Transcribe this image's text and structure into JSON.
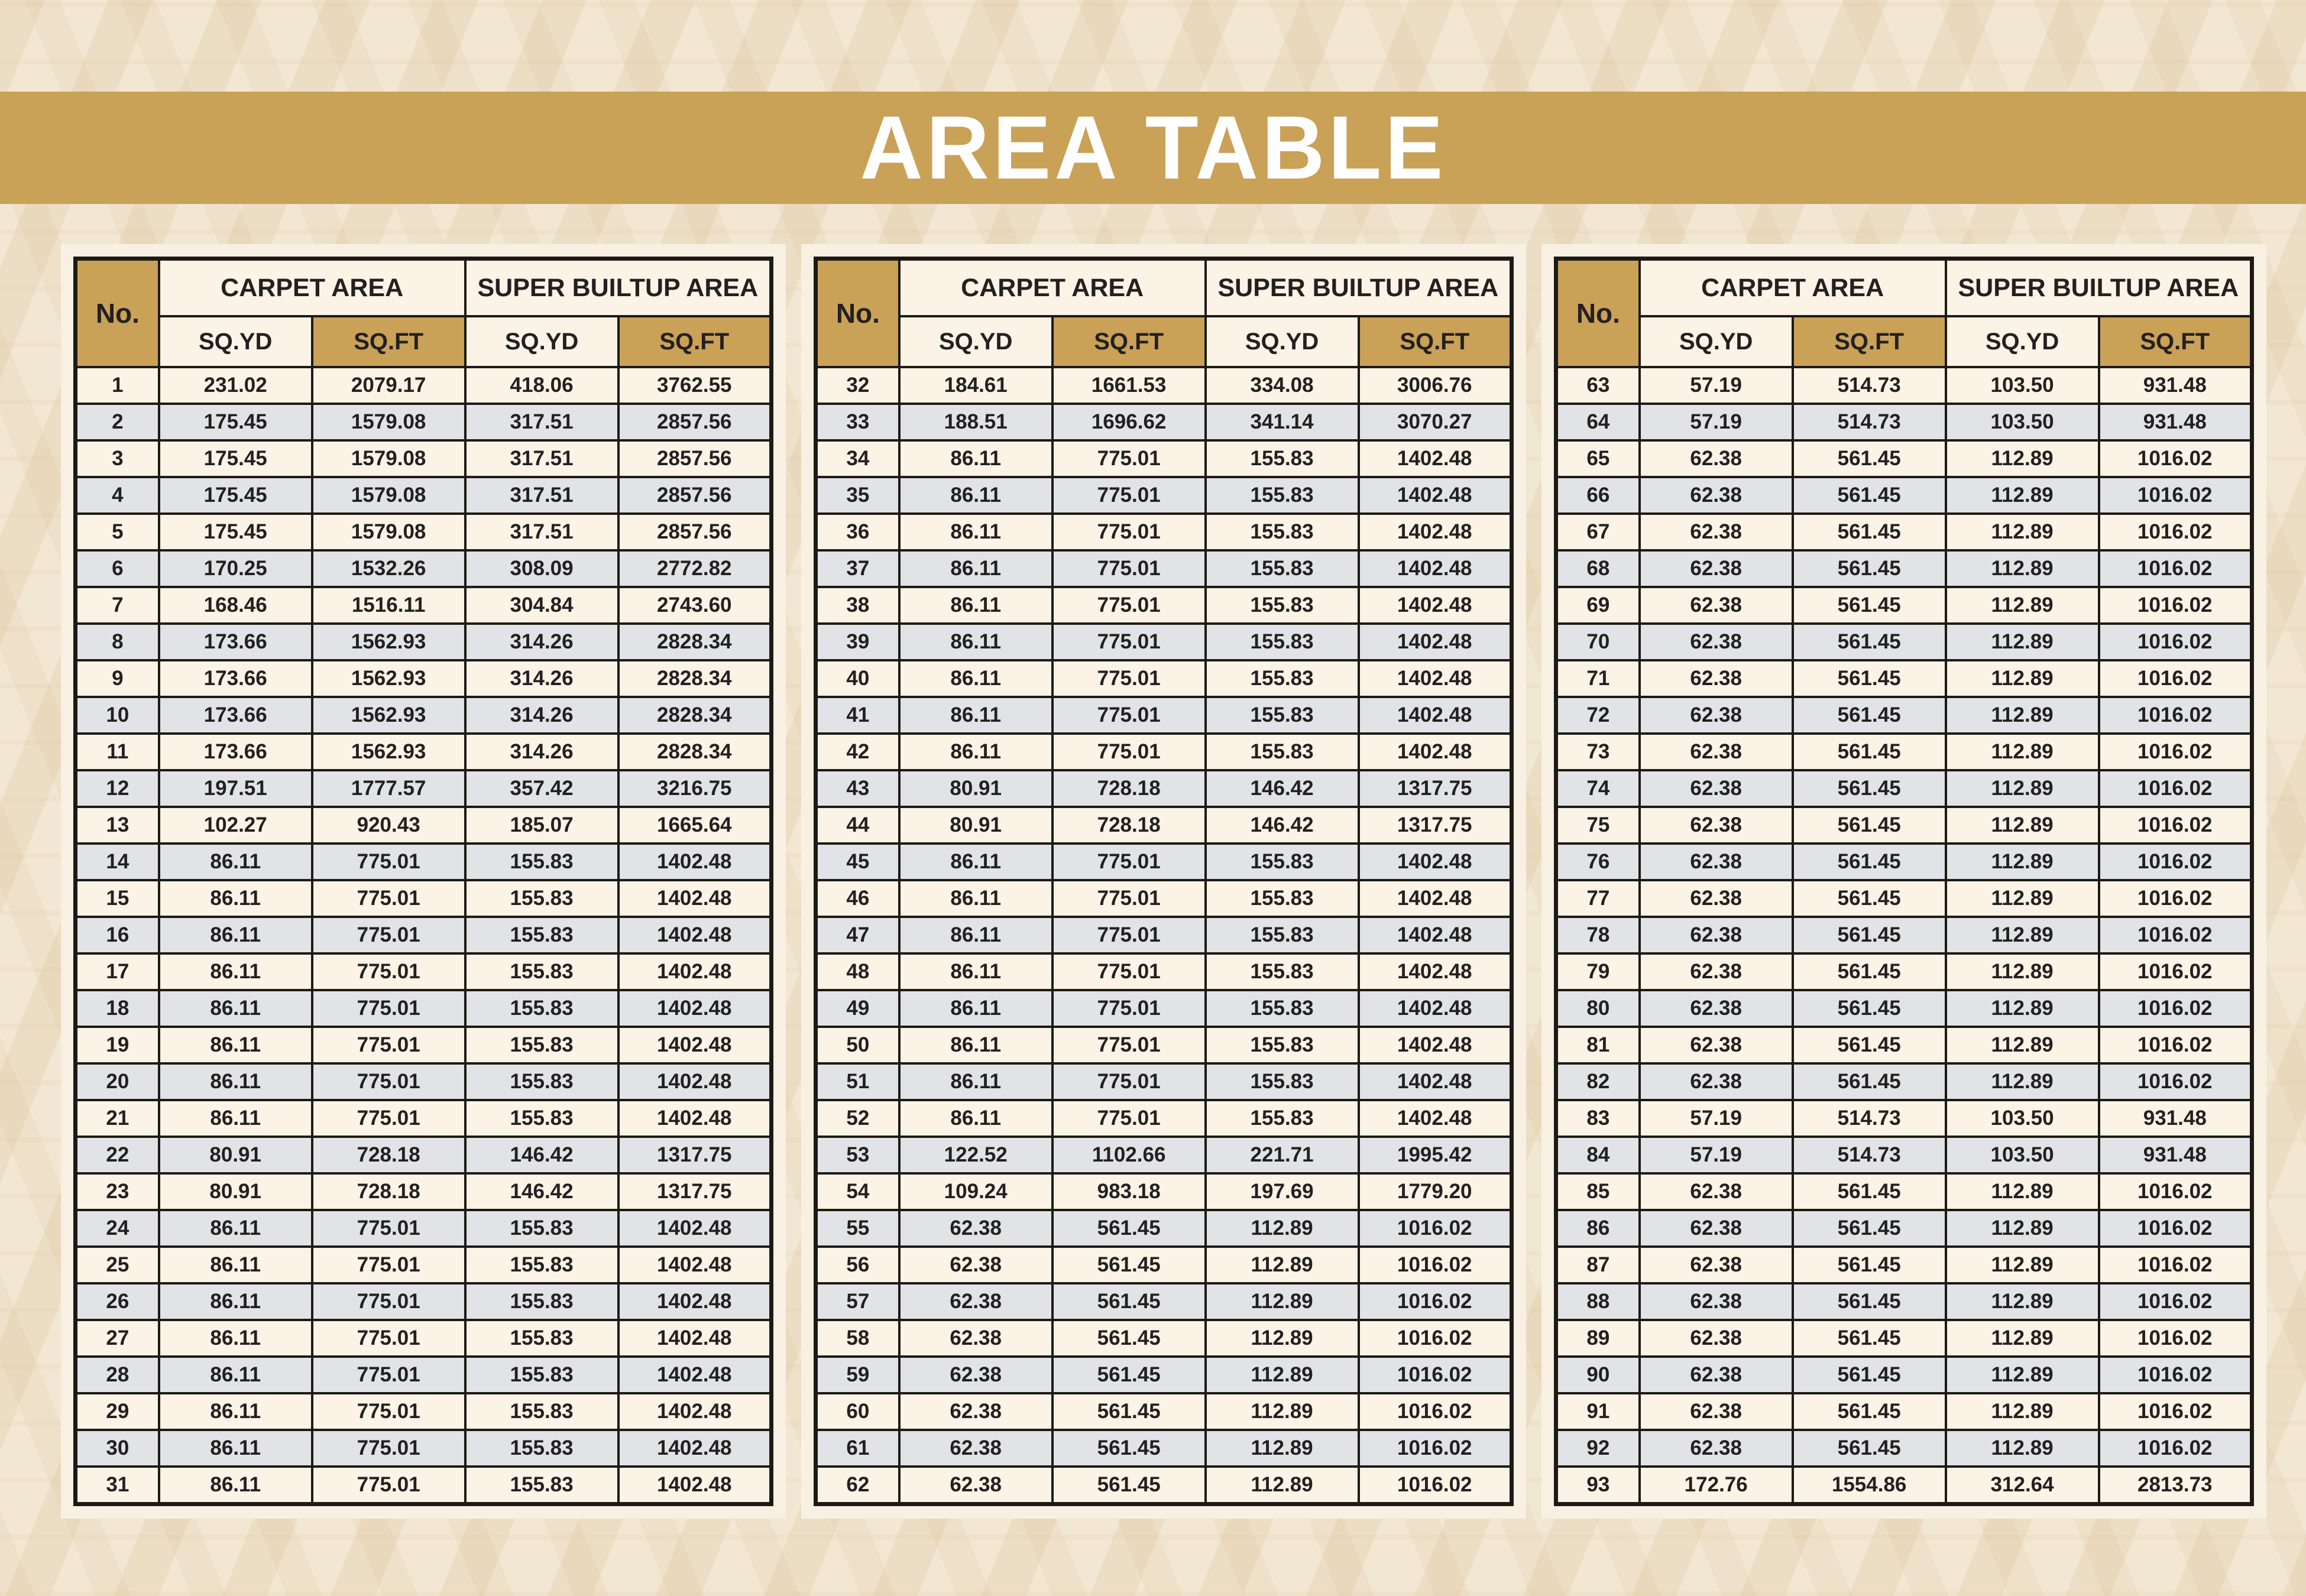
{
  "title": "AREA TABLE",
  "colors": {
    "band_gold": "#c9a157",
    "header_gold": "#c9a157",
    "row_cream": "#faf3e6",
    "row_gray": "#e2e3e6",
    "border_dark": "#1d1a16",
    "page_background": "#f2e7d3",
    "panel_background": "#f8f1e3",
    "title_text": "#ffffff",
    "cell_text": "#232020"
  },
  "headers": {
    "no": "No.",
    "carpet": "CARPET AREA",
    "super_builtup": "SUPER BUILTUP AREA",
    "sqyd": "SQ.YD",
    "sqft": "SQ.FT"
  },
  "tables": [
    {
      "rows": [
        [
          "1",
          "231.02",
          "2079.17",
          "418.06",
          "3762.55"
        ],
        [
          "2",
          "175.45",
          "1579.08",
          "317.51",
          "2857.56"
        ],
        [
          "3",
          "175.45",
          "1579.08",
          "317.51",
          "2857.56"
        ],
        [
          "4",
          "175.45",
          "1579.08",
          "317.51",
          "2857.56"
        ],
        [
          "5",
          "175.45",
          "1579.08",
          "317.51",
          "2857.56"
        ],
        [
          "6",
          "170.25",
          "1532.26",
          "308.09",
          "2772.82"
        ],
        [
          "7",
          "168.46",
          "1516.11",
          "304.84",
          "2743.60"
        ],
        [
          "8",
          "173.66",
          "1562.93",
          "314.26",
          "2828.34"
        ],
        [
          "9",
          "173.66",
          "1562.93",
          "314.26",
          "2828.34"
        ],
        [
          "10",
          "173.66",
          "1562.93",
          "314.26",
          "2828.34"
        ],
        [
          "11",
          "173.66",
          "1562.93",
          "314.26",
          "2828.34"
        ],
        [
          "12",
          "197.51",
          "1777.57",
          "357.42",
          "3216.75"
        ],
        [
          "13",
          "102.27",
          "920.43",
          "185.07",
          "1665.64"
        ],
        [
          "14",
          "86.11",
          "775.01",
          "155.83",
          "1402.48"
        ],
        [
          "15",
          "86.11",
          "775.01",
          "155.83",
          "1402.48"
        ],
        [
          "16",
          "86.11",
          "775.01",
          "155.83",
          "1402.48"
        ],
        [
          "17",
          "86.11",
          "775.01",
          "155.83",
          "1402.48"
        ],
        [
          "18",
          "86.11",
          "775.01",
          "155.83",
          "1402.48"
        ],
        [
          "19",
          "86.11",
          "775.01",
          "155.83",
          "1402.48"
        ],
        [
          "20",
          "86.11",
          "775.01",
          "155.83",
          "1402.48"
        ],
        [
          "21",
          "86.11",
          "775.01",
          "155.83",
          "1402.48"
        ],
        [
          "22",
          "80.91",
          "728.18",
          "146.42",
          "1317.75"
        ],
        [
          "23",
          "80.91",
          "728.18",
          "146.42",
          "1317.75"
        ],
        [
          "24",
          "86.11",
          "775.01",
          "155.83",
          "1402.48"
        ],
        [
          "25",
          "86.11",
          "775.01",
          "155.83",
          "1402.48"
        ],
        [
          "26",
          "86.11",
          "775.01",
          "155.83",
          "1402.48"
        ],
        [
          "27",
          "86.11",
          "775.01",
          "155.83",
          "1402.48"
        ],
        [
          "28",
          "86.11",
          "775.01",
          "155.83",
          "1402.48"
        ],
        [
          "29",
          "86.11",
          "775.01",
          "155.83",
          "1402.48"
        ],
        [
          "30",
          "86.11",
          "775.01",
          "155.83",
          "1402.48"
        ],
        [
          "31",
          "86.11",
          "775.01",
          "155.83",
          "1402.48"
        ]
      ]
    },
    {
      "rows": [
        [
          "32",
          "184.61",
          "1661.53",
          "334.08",
          "3006.76"
        ],
        [
          "33",
          "188.51",
          "1696.62",
          "341.14",
          "3070.27"
        ],
        [
          "34",
          "86.11",
          "775.01",
          "155.83",
          "1402.48"
        ],
        [
          "35",
          "86.11",
          "775.01",
          "155.83",
          "1402.48"
        ],
        [
          "36",
          "86.11",
          "775.01",
          "155.83",
          "1402.48"
        ],
        [
          "37",
          "86.11",
          "775.01",
          "155.83",
          "1402.48"
        ],
        [
          "38",
          "86.11",
          "775.01",
          "155.83",
          "1402.48"
        ],
        [
          "39",
          "86.11",
          "775.01",
          "155.83",
          "1402.48"
        ],
        [
          "40",
          "86.11",
          "775.01",
          "155.83",
          "1402.48"
        ],
        [
          "41",
          "86.11",
          "775.01",
          "155.83",
          "1402.48"
        ],
        [
          "42",
          "86.11",
          "775.01",
          "155.83",
          "1402.48"
        ],
        [
          "43",
          "80.91",
          "728.18",
          "146.42",
          "1317.75"
        ],
        [
          "44",
          "80.91",
          "728.18",
          "146.42",
          "1317.75"
        ],
        [
          "45",
          "86.11",
          "775.01",
          "155.83",
          "1402.48"
        ],
        [
          "46",
          "86.11",
          "775.01",
          "155.83",
          "1402.48"
        ],
        [
          "47",
          "86.11",
          "775.01",
          "155.83",
          "1402.48"
        ],
        [
          "48",
          "86.11",
          "775.01",
          "155.83",
          "1402.48"
        ],
        [
          "49",
          "86.11",
          "775.01",
          "155.83",
          "1402.48"
        ],
        [
          "50",
          "86.11",
          "775.01",
          "155.83",
          "1402.48"
        ],
        [
          "51",
          "86.11",
          "775.01",
          "155.83",
          "1402.48"
        ],
        [
          "52",
          "86.11",
          "775.01",
          "155.83",
          "1402.48"
        ],
        [
          "53",
          "122.52",
          "1102.66",
          "221.71",
          "1995.42"
        ],
        [
          "54",
          "109.24",
          "983.18",
          "197.69",
          "1779.20"
        ],
        [
          "55",
          "62.38",
          "561.45",
          "112.89",
          "1016.02"
        ],
        [
          "56",
          "62.38",
          "561.45",
          "112.89",
          "1016.02"
        ],
        [
          "57",
          "62.38",
          "561.45",
          "112.89",
          "1016.02"
        ],
        [
          "58",
          "62.38",
          "561.45",
          "112.89",
          "1016.02"
        ],
        [
          "59",
          "62.38",
          "561.45",
          "112.89",
          "1016.02"
        ],
        [
          "60",
          "62.38",
          "561.45",
          "112.89",
          "1016.02"
        ],
        [
          "61",
          "62.38",
          "561.45",
          "112.89",
          "1016.02"
        ],
        [
          "62",
          "62.38",
          "561.45",
          "112.89",
          "1016.02"
        ]
      ]
    },
    {
      "rows": [
        [
          "63",
          "57.19",
          "514.73",
          "103.50",
          "931.48"
        ],
        [
          "64",
          "57.19",
          "514.73",
          "103.50",
          "931.48"
        ],
        [
          "65",
          "62.38",
          "561.45",
          "112.89",
          "1016.02"
        ],
        [
          "66",
          "62.38",
          "561.45",
          "112.89",
          "1016.02"
        ],
        [
          "67",
          "62.38",
          "561.45",
          "112.89",
          "1016.02"
        ],
        [
          "68",
          "62.38",
          "561.45",
          "112.89",
          "1016.02"
        ],
        [
          "69",
          "62.38",
          "561.45",
          "112.89",
          "1016.02"
        ],
        [
          "70",
          "62.38",
          "561.45",
          "112.89",
          "1016.02"
        ],
        [
          "71",
          "62.38",
          "561.45",
          "112.89",
          "1016.02"
        ],
        [
          "72",
          "62.38",
          "561.45",
          "112.89",
          "1016.02"
        ],
        [
          "73",
          "62.38",
          "561.45",
          "112.89",
          "1016.02"
        ],
        [
          "74",
          "62.38",
          "561.45",
          "112.89",
          "1016.02"
        ],
        [
          "75",
          "62.38",
          "561.45",
          "112.89",
          "1016.02"
        ],
        [
          "76",
          "62.38",
          "561.45",
          "112.89",
          "1016.02"
        ],
        [
          "77",
          "62.38",
          "561.45",
          "112.89",
          "1016.02"
        ],
        [
          "78",
          "62.38",
          "561.45",
          "112.89",
          "1016.02"
        ],
        [
          "79",
          "62.38",
          "561.45",
          "112.89",
          "1016.02"
        ],
        [
          "80",
          "62.38",
          "561.45",
          "112.89",
          "1016.02"
        ],
        [
          "81",
          "62.38",
          "561.45",
          "112.89",
          "1016.02"
        ],
        [
          "82",
          "62.38",
          "561.45",
          "112.89",
          "1016.02"
        ],
        [
          "83",
          "57.19",
          "514.73",
          "103.50",
          "931.48"
        ],
        [
          "84",
          "57.19",
          "514.73",
          "103.50",
          "931.48"
        ],
        [
          "85",
          "62.38",
          "561.45",
          "112.89",
          "1016.02"
        ],
        [
          "86",
          "62.38",
          "561.45",
          "112.89",
          "1016.02"
        ],
        [
          "87",
          "62.38",
          "561.45",
          "112.89",
          "1016.02"
        ],
        [
          "88",
          "62.38",
          "561.45",
          "112.89",
          "1016.02"
        ],
        [
          "89",
          "62.38",
          "561.45",
          "112.89",
          "1016.02"
        ],
        [
          "90",
          "62.38",
          "561.45",
          "112.89",
          "1016.02"
        ],
        [
          "91",
          "62.38",
          "561.45",
          "112.89",
          "1016.02"
        ],
        [
          "92",
          "62.38",
          "561.45",
          "112.89",
          "1016.02"
        ],
        [
          "93",
          "172.76",
          "1554.86",
          "312.64",
          "2813.73"
        ]
      ]
    }
  ]
}
